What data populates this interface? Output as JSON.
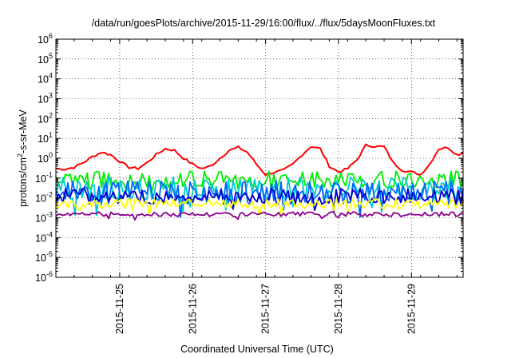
{
  "chart_data": {
    "type": "line",
    "title": "/data/run/goesPlots/archive/2015-11-29/16:00/flux/../flux/5daysMoonFluxes.txt",
    "xlabel": "Coordinated Universal Time (UTC)",
    "ylabel": {
      "base": "protons/cm",
      "exp": "2",
      "rest": "-s-sr-MeV"
    },
    "y_scale": "log",
    "ylim": [
      1e-06,
      1000000.0
    ],
    "y_ticks": [
      {
        "value": 1e-06,
        "base": "10",
        "exp": "-6"
      },
      {
        "value": 1e-05,
        "base": "10",
        "exp": "-5"
      },
      {
        "value": 0.0001,
        "base": "10",
        "exp": "-4"
      },
      {
        "value": 0.001,
        "base": "10",
        "exp": "-3"
      },
      {
        "value": 0.01,
        "base": "10",
        "exp": "-2"
      },
      {
        "value": 0.1,
        "base": "10",
        "exp": "-1"
      },
      {
        "value": 1,
        "base": "10",
        "exp": "0"
      },
      {
        "value": 10,
        "base": "10",
        "exp": "1"
      },
      {
        "value": 100,
        "base": "10",
        "exp": "2"
      },
      {
        "value": 1000,
        "base": "10",
        "exp": "3"
      },
      {
        "value": 10000,
        "base": "10",
        "exp": "4"
      },
      {
        "value": 100000,
        "base": "10",
        "exp": "5"
      },
      {
        "value": 1000000,
        "base": "10",
        "exp": "6"
      }
    ],
    "x_range_days": [
      "2015-11-24T03:00",
      "2015-11-29T17:00"
    ],
    "x_ticks": [
      "2015-11-25",
      "2015-11-26",
      "2015-11-27",
      "2015-11-28",
      "2015-11-29"
    ],
    "grid": true,
    "series": [
      {
        "color": "#ff0000",
        "x": [
          "2015-11-24T03:00",
          "2015-11-24T06:00",
          "2015-11-24T09:00",
          "2015-11-24T12:00",
          "2015-11-24T15:00",
          "2015-11-24T18:00",
          "2015-11-24T21:00",
          "2015-11-25T00:00",
          "2015-11-25T03:00",
          "2015-11-25T06:00",
          "2015-11-25T09:00",
          "2015-11-25T12:00",
          "2015-11-25T15:00",
          "2015-11-25T18:00",
          "2015-11-25T21:00",
          "2015-11-26T00:00",
          "2015-11-26T03:00",
          "2015-11-26T06:00",
          "2015-11-26T09:00",
          "2015-11-26T12:00",
          "2015-11-26T15:00",
          "2015-11-26T18:00",
          "2015-11-26T21:00",
          "2015-11-27T00:00",
          "2015-11-27T03:00",
          "2015-11-27T06:00",
          "2015-11-27T09:00",
          "2015-11-27T12:00",
          "2015-11-27T15:00",
          "2015-11-27T18:00",
          "2015-11-27T21:00",
          "2015-11-28T00:00",
          "2015-11-28T03:00",
          "2015-11-28T06:00",
          "2015-11-28T09:00",
          "2015-11-28T12:00",
          "2015-11-28T15:00",
          "2015-11-28T18:00",
          "2015-11-28T21:00",
          "2015-11-29T00:00",
          "2015-11-29T03:00",
          "2015-11-29T06:00",
          "2015-11-29T09:00",
          "2015-11-29T12:00",
          "2015-11-29T15:00",
          "2015-11-29T17:00"
        ],
        "values": [
          0.3,
          0.28,
          0.35,
          0.6,
          1.2,
          2.0,
          1.5,
          0.7,
          0.35,
          0.3,
          0.6,
          1.5,
          3.0,
          2.5,
          1.0,
          0.5,
          0.3,
          0.4,
          1.0,
          2.5,
          3.5,
          2.0,
          0.5,
          0.15,
          0.2,
          0.25,
          0.5,
          1.5,
          4.0,
          3.0,
          0.4,
          0.2,
          0.3,
          0.8,
          4.5,
          4.0,
          3.8,
          0.6,
          0.25,
          0.2,
          0.15,
          0.5,
          3.0,
          3.5,
          1.5,
          1.8
        ]
      },
      {
        "color": "#00ee00",
        "level": 0.08,
        "spread": 0.45
      },
      {
        "color": "#00cccc",
        "level": 0.03,
        "spread": 0.6
      },
      {
        "color": "#0066ff",
        "level": 0.018,
        "spread": 0.6
      },
      {
        "color": "#0000cc",
        "level": 0.012,
        "spread": 0.4
      },
      {
        "color": "#ffff00",
        "level": 0.005,
        "spread": 0.25
      },
      {
        "color": "#8b008b",
        "level": 0.0015,
        "spread": 0.12
      }
    ]
  }
}
